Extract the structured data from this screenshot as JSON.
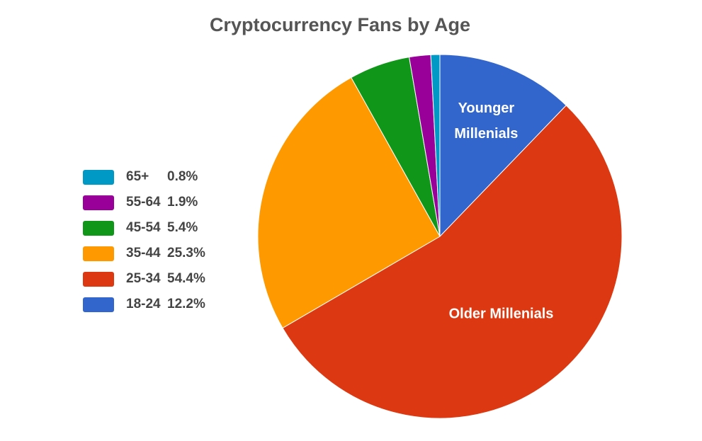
{
  "chart_data": {
    "type": "pie",
    "title": "Cryptocurrency Fans by Age",
    "categories": [
      "18-24",
      "25-34",
      "35-44",
      "45-54",
      "55-64",
      "65+"
    ],
    "values": [
      12.2,
      54.4,
      25.3,
      5.4,
      1.9,
      0.8
    ],
    "value_labels": [
      "12.2%",
      "54.4%",
      "25.3%",
      "5.4%",
      "1.9%",
      "0.8%"
    ],
    "colors": [
      "#3366cc",
      "#dc3912",
      "#ff9900",
      "#109618",
      "#990099",
      "#0099c6"
    ],
    "legend_order": [
      "65+",
      "55-64",
      "45-54",
      "35-44",
      "25-34",
      "18-24"
    ],
    "legend_position": "left",
    "annotations": [
      {
        "category": "18-24",
        "lines": [
          "Younger",
          "Millenials"
        ]
      },
      {
        "category": "25-34",
        "lines": [
          "Older Millenials"
        ]
      }
    ]
  }
}
